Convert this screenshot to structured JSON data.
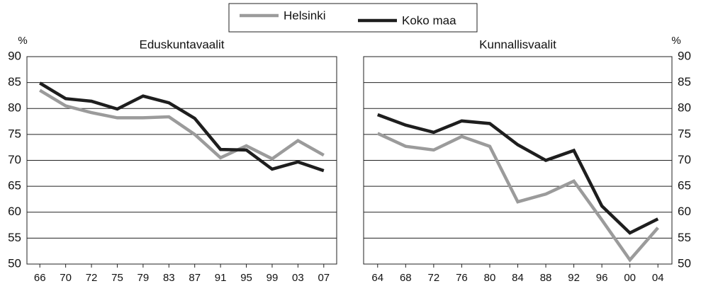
{
  "chart_data": [
    {
      "type": "line",
      "title": "Eduskuntavaalit",
      "ylabel": "%",
      "yaxis": "left",
      "legend": "top",
      "grid": true,
      "categories": [
        "66",
        "70",
        "72",
        "75",
        "79",
        "83",
        "87",
        "91",
        "95",
        "99",
        "03",
        "07"
      ],
      "ylim": [
        50,
        90
      ],
      "yticks": [
        50,
        55,
        60,
        65,
        70,
        75,
        80,
        85,
        90
      ],
      "series": [
        {
          "name": "Helsinki",
          "color": "#9b9b9b",
          "values": [
            83.5,
            80.5,
            79.2,
            78.2,
            78.2,
            78.4,
            75.0,
            70.5,
            72.8,
            70.3,
            73.8,
            71.0
          ]
        },
        {
          "name": "Koko maa",
          "color": "#1e1e1e",
          "values": [
            84.9,
            81.9,
            81.4,
            79.9,
            82.4,
            81.1,
            78.1,
            72.1,
            72.0,
            68.3,
            69.7,
            68.0
          ]
        }
      ]
    },
    {
      "type": "line",
      "title": "Kunnallisvaalit",
      "ylabel": "%",
      "yaxis": "right",
      "grid": true,
      "categories": [
        "64",
        "68",
        "72",
        "76",
        "80",
        "84",
        "88",
        "92",
        "96",
        "00",
        "04"
      ],
      "ylim": [
        50,
        90
      ],
      "yticks": [
        50,
        55,
        60,
        65,
        70,
        75,
        80,
        85,
        90
      ],
      "series": [
        {
          "color": "#9b9b9b",
          "values": [
            75.2,
            72.7,
            72.0,
            74.6,
            72.7,
            62.0,
            63.5,
            66.0,
            58.5,
            50.8,
            57.0
          ]
        },
        {
          "color": "#1e1e1e",
          "values": [
            78.8,
            76.8,
            75.4,
            77.6,
            77.1,
            73.0,
            70.0,
            71.9,
            61.2,
            56.0,
            58.7
          ]
        }
      ]
    }
  ]
}
